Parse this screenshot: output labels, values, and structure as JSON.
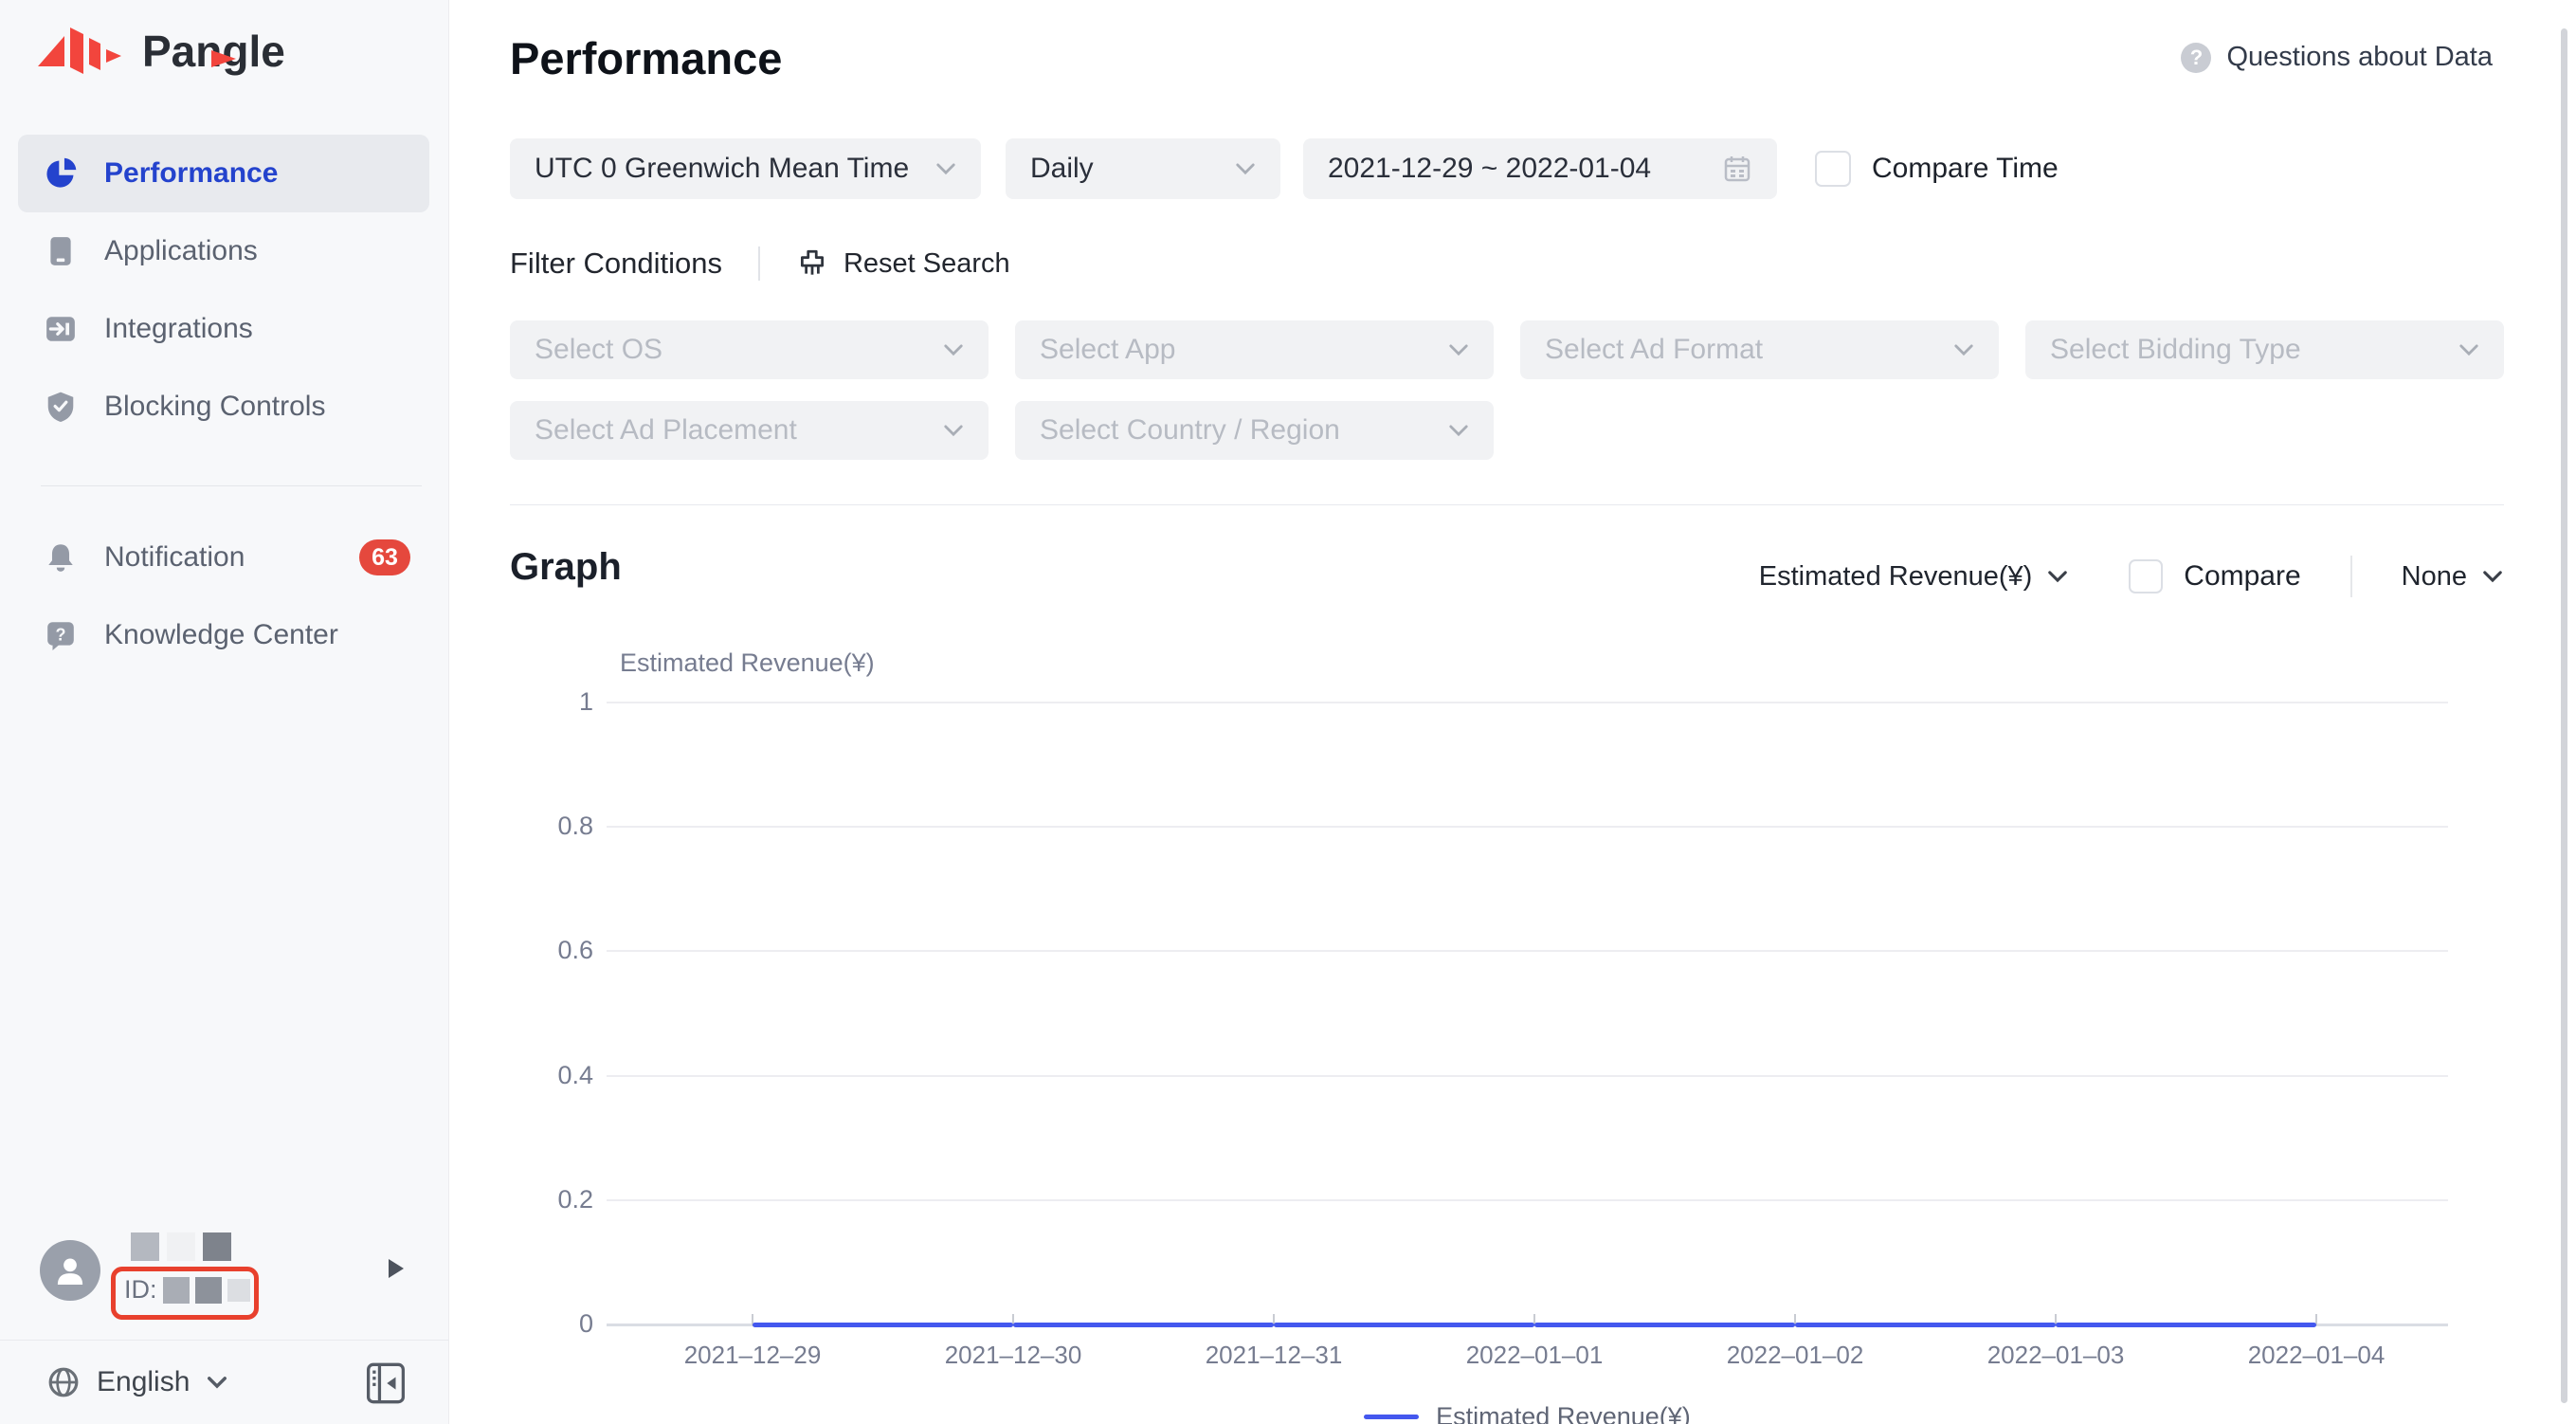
{
  "brand": {
    "name": "Pangle"
  },
  "sidebar": {
    "items": [
      {
        "label": "Performance",
        "icon": "pie-chart-icon",
        "active": true
      },
      {
        "label": "Applications",
        "icon": "tablet-icon",
        "active": false
      },
      {
        "label": "Integrations",
        "icon": "integration-arrow-icon",
        "active": false
      },
      {
        "label": "Blocking Controls",
        "icon": "shield-check-icon",
        "active": false
      },
      {
        "label": "Notification",
        "icon": "bell-icon",
        "badge": "63",
        "active": false
      },
      {
        "label": "Knowledge Center",
        "icon": "question-bubble-icon",
        "active": false
      }
    ],
    "user": {
      "id_label": "ID:"
    },
    "language": "English"
  },
  "header": {
    "title": "Performance",
    "help_label": "Questions about Data"
  },
  "filters": {
    "timezone": "UTC 0 Greenwich Mean Time",
    "granularity": "Daily",
    "date_range": "2021-12-29 ~ 2022-01-04",
    "compare_time_label": "Compare Time",
    "compare_time_checked": false,
    "section_label": "Filter Conditions",
    "reset_label": "Reset Search",
    "selects": [
      "Select OS",
      "Select App",
      "Select Ad Format",
      "Select Bidding Type",
      "Select Ad Placement",
      "Select Country / Region"
    ]
  },
  "graph": {
    "section_title": "Graph",
    "metric": "Estimated Revenue(¥)",
    "compare_label": "Compare",
    "compare_checked": false,
    "breakdown": "None"
  },
  "chart_data": {
    "type": "line",
    "x": [
      "2021-12-29",
      "2021-12-30",
      "2021-12-31",
      "2022-01-01",
      "2022-01-02",
      "2022-01-03",
      "2022-01-04"
    ],
    "series": [
      {
        "name": "Estimated Revenue(¥)",
        "values": [
          0,
          0,
          0,
          0,
          0,
          0,
          0
        ]
      }
    ],
    "yaxis_name": "Estimated Revenue(¥)",
    "ylim": [
      0,
      1
    ],
    "yticks": [
      0,
      0.2,
      0.4,
      0.6,
      0.8,
      1
    ],
    "grid": true,
    "legend_position": "bottom",
    "line_color": "#4458ee"
  },
  "colors": {
    "accent_blue": "#2443cd",
    "brand_red": "#f2453d",
    "badge_red": "#e5483d",
    "annotation_red": "#e8402d",
    "line_blue": "#4458ee"
  }
}
